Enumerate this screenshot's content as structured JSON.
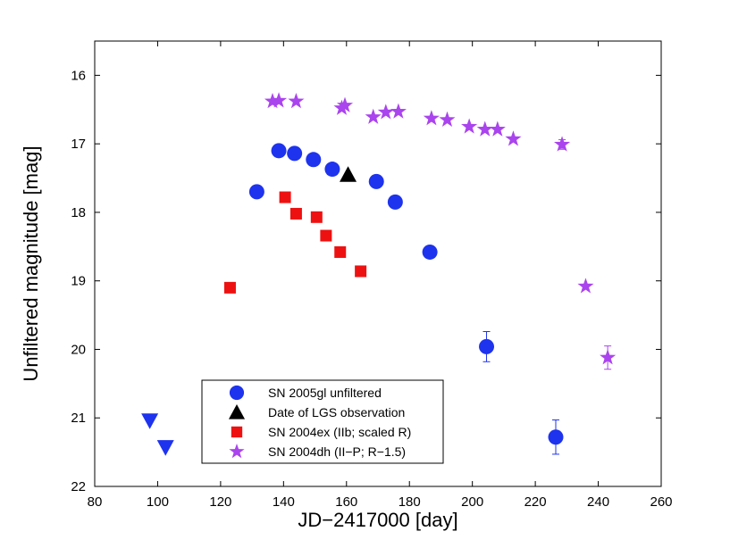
{
  "chart_data": {
    "type": "scatter",
    "xlabel": "JD−2417000 [day]",
    "ylabel": "Unfiltered magnitude [mag]",
    "xlim": [
      80,
      260
    ],
    "ylim": [
      15.5,
      22
    ],
    "y_inverted": true,
    "xticks": [
      80,
      100,
      120,
      140,
      160,
      180,
      200,
      220,
      240,
      260
    ],
    "yticks": [
      16,
      17,
      18,
      19,
      20,
      21,
      22
    ],
    "grid": false,
    "legend_position": "bottom-left",
    "series": [
      {
        "name": "SN 2005gl unfiltered",
        "marker": "circle",
        "color": "#1e33ee",
        "points": [
          {
            "x": 131.5,
            "y": 17.7
          },
          {
            "x": 138.5,
            "y": 17.1
          },
          {
            "x": 143.5,
            "y": 17.14
          },
          {
            "x": 149.5,
            "y": 17.23
          },
          {
            "x": 155.5,
            "y": 17.37
          },
          {
            "x": 169.5,
            "y": 17.55
          },
          {
            "x": 175.5,
            "y": 17.85
          },
          {
            "x": 186.5,
            "y": 18.58
          },
          {
            "x": 204.5,
            "y": 19.96,
            "err": 0.22
          },
          {
            "x": 226.5,
            "y": 21.28,
            "err": 0.25
          }
        ]
      },
      {
        "name": "Date of LGS observation",
        "marker": "triangle-up",
        "color": "#000000",
        "points": [
          {
            "x": 160.5,
            "y": 17.45
          }
        ]
      },
      {
        "name": "SN 2004ex (IIb; scaled R)",
        "marker": "square",
        "color": "#ee1111",
        "points": [
          {
            "x": 123,
            "y": 19.1
          },
          {
            "x": 140.5,
            "y": 17.78
          },
          {
            "x": 144,
            "y": 18.02
          },
          {
            "x": 150.5,
            "y": 18.07
          },
          {
            "x": 153.5,
            "y": 18.34
          },
          {
            "x": 158,
            "y": 18.58
          },
          {
            "x": 164.5,
            "y": 18.86
          }
        ]
      },
      {
        "name": "SN 2004dh (II−P; R−1.5)",
        "marker": "star",
        "color": "#aa44ee",
        "points": [
          {
            "x": 136.5,
            "y": 16.38
          },
          {
            "x": 138.5,
            "y": 16.37
          },
          {
            "x": 144,
            "y": 16.38
          },
          {
            "x": 158.5,
            "y": 16.48
          },
          {
            "x": 159.5,
            "y": 16.44
          },
          {
            "x": 168.5,
            "y": 16.61
          },
          {
            "x": 172.5,
            "y": 16.54
          },
          {
            "x": 176.5,
            "y": 16.53
          },
          {
            "x": 187,
            "y": 16.63
          },
          {
            "x": 192,
            "y": 16.65
          },
          {
            "x": 199,
            "y": 16.75
          },
          {
            "x": 204,
            "y": 16.79
          },
          {
            "x": 208,
            "y": 16.79
          },
          {
            "x": 213,
            "y": 16.93
          },
          {
            "x": 228.5,
            "y": 17.01,
            "err": 0.07
          },
          {
            "x": 236,
            "y": 19.08
          },
          {
            "x": 243,
            "y": 20.12,
            "err": 0.17
          }
        ]
      },
      {
        "name": "",
        "marker": "triangle-down",
        "color": "#1e33ee",
        "in_legend": false,
        "points": [
          {
            "x": 97.5,
            "y": 21.04
          },
          {
            "x": 102.5,
            "y": 21.43
          }
        ]
      }
    ]
  }
}
